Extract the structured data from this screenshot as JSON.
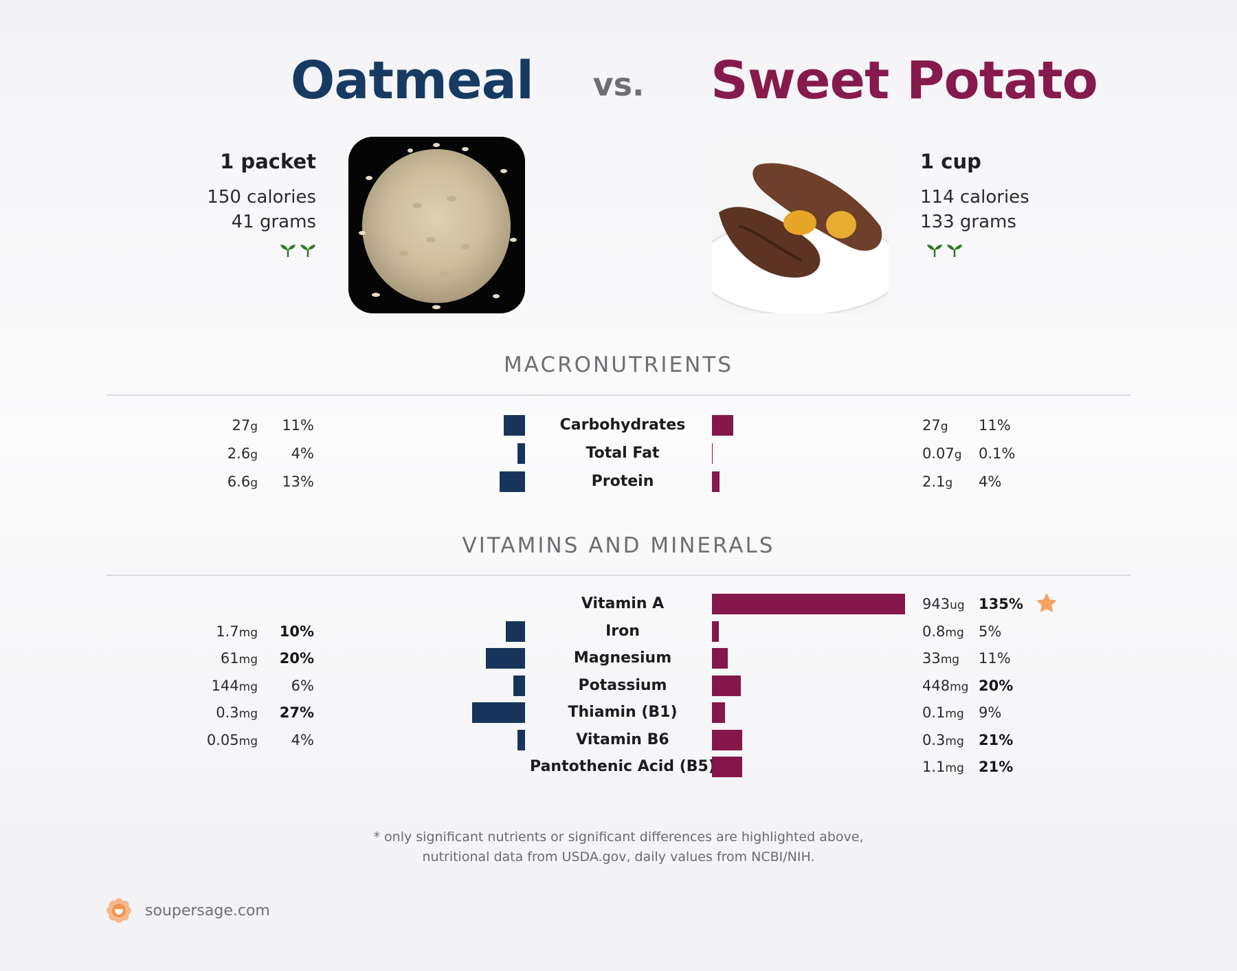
{
  "header": {
    "left_food": "Oatmeal",
    "vs_label": "vs.",
    "right_food": "Sweet Potato",
    "left_color": "#173a63",
    "right_color": "#861a4d"
  },
  "left_food_info": {
    "serving": "1 packet",
    "calories": "150 calories",
    "weight": "41 grams",
    "icons": [
      "sprout-icon",
      "sprout-icon"
    ]
  },
  "right_food_info": {
    "serving": "1 cup",
    "calories": "114 calories",
    "weight": "133 grams",
    "icons": [
      "sprout-icon",
      "sprout-icon"
    ]
  },
  "sections": {
    "macros_title": "MACRONUTRIENTS",
    "vitamins_title": "VITAMINS AND MINERALS"
  },
  "chart_data": [
    {
      "type": "bar",
      "title": "MACRONUTRIENTS",
      "categories": [
        "Carbohydrates",
        "Total Fat",
        "Protein"
      ],
      "series": [
        {
          "name": "Oatmeal",
          "amounts": [
            {
              "value": "27",
              "unit": "g"
            },
            {
              "value": "2.6",
              "unit": "g"
            },
            {
              "value": "6.6",
              "unit": "g"
            }
          ],
          "values": [
            11,
            4,
            13
          ],
          "labels": [
            "11%",
            "4%",
            "13%"
          ],
          "bold": [
            false,
            false,
            false
          ]
        },
        {
          "name": "Sweet Potato",
          "amounts": [
            {
              "value": "27",
              "unit": "g"
            },
            {
              "value": "0.07",
              "unit": "g"
            },
            {
              "value": "2.1",
              "unit": "g"
            }
          ],
          "values": [
            11,
            0.1,
            4
          ],
          "labels": [
            "11%",
            "0.1%",
            "4%"
          ],
          "bold": [
            false,
            false,
            false
          ]
        }
      ]
    },
    {
      "type": "bar",
      "title": "VITAMINS AND MINERALS",
      "categories": [
        "Vitamin A",
        "Iron",
        "Magnesium",
        "Potassium",
        "Thiamin (B1)",
        "Vitamin B6",
        "Pantothenic Acid (B5)"
      ],
      "series": [
        {
          "name": "Oatmeal",
          "amounts": [
            null,
            {
              "value": "1.7",
              "unit": "mg"
            },
            {
              "value": "61",
              "unit": "mg"
            },
            {
              "value": "144",
              "unit": "mg"
            },
            {
              "value": "0.3",
              "unit": "mg"
            },
            {
              "value": "0.05",
              "unit": "mg"
            },
            null
          ],
          "values": [
            null,
            10,
            20,
            6,
            27,
            4,
            null
          ],
          "labels": [
            "",
            "10%",
            "20%",
            "6%",
            "27%",
            "4%",
            ""
          ],
          "bold": [
            false,
            true,
            true,
            false,
            true,
            false,
            false
          ]
        },
        {
          "name": "Sweet Potato",
          "amounts": [
            {
              "value": "943",
              "unit": "ug"
            },
            {
              "value": "0.8",
              "unit": "mg"
            },
            {
              "value": "33",
              "unit": "mg"
            },
            {
              "value": "448",
              "unit": "mg"
            },
            {
              "value": "0.1",
              "unit": "mg"
            },
            {
              "value": "0.3",
              "unit": "mg"
            },
            {
              "value": "1.1",
              "unit": "mg"
            }
          ],
          "values": [
            135,
            5,
            11,
            20,
            9,
            21,
            21
          ],
          "labels": [
            "135%",
            "5%",
            "11%",
            "20%",
            "9%",
            "21%",
            "21%"
          ],
          "bold": [
            true,
            false,
            false,
            true,
            false,
            true,
            true
          ],
          "starred": [
            true,
            false,
            false,
            false,
            false,
            false,
            false
          ]
        }
      ]
    }
  ],
  "footnote": {
    "line1": "* only significant nutrients or significant differences are highlighted above,",
    "line2": "nutritional data from USDA.gov, daily values from NCBI/NIH."
  },
  "brand": {
    "site": "soupersage.com",
    "icon": "soupersage-logo-icon",
    "accent": "#f2a06a"
  }
}
